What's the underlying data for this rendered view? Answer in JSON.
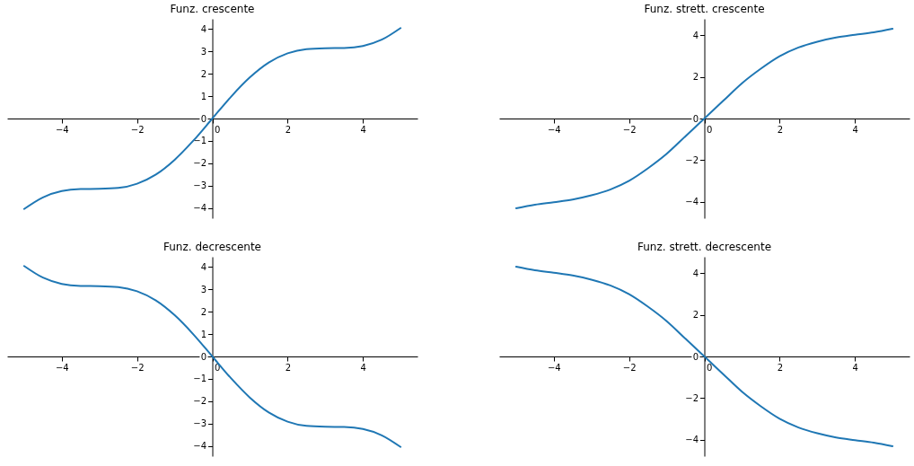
{
  "chart_data": [
    {
      "type": "line",
      "title": "Funz. crescente",
      "x": [
        -5,
        -4.5,
        -4,
        -3.5,
        -3,
        -2.5,
        -2,
        -1.5,
        -1,
        -0.5,
        0,
        0.5,
        1,
        1.5,
        2,
        2.5,
        3,
        3.5,
        4,
        4.5,
        5
      ],
      "xlim": [
        -5.45,
        5.45
      ],
      "xticks": [
        -4,
        -2,
        0,
        2,
        4
      ],
      "ylim": [
        -4.45,
        4.45
      ],
      "yticks": [
        -4,
        -3,
        -2,
        -1,
        0,
        1,
        2,
        3,
        4
      ],
      "series": [
        {
          "color": "#1f77b4",
          "values": [
            -4.04,
            -3.52,
            -3.24,
            -3.15,
            -3.14,
            -3.1,
            -2.91,
            -2.5,
            -1.84,
            -0.98,
            0,
            0.98,
            1.84,
            2.5,
            2.91,
            3.1,
            3.14,
            3.15,
            3.24,
            3.52,
            4.04
          ]
        }
      ]
    },
    {
      "type": "line",
      "title": "Funz. strett. crescente",
      "x": [
        -5,
        -4.5,
        -4,
        -3.5,
        -3,
        -2.5,
        -2,
        -1.5,
        -1,
        -0.5,
        0,
        0.5,
        1,
        1.5,
        2,
        2.5,
        3,
        3.5,
        4,
        4.5,
        5
      ],
      "xlim": [
        -5.45,
        5.45
      ],
      "xticks": [
        -4,
        -2,
        0,
        2,
        4
      ],
      "ylim": [
        -4.8,
        4.8
      ],
      "yticks": [
        -4,
        -2,
        0,
        2,
        4
      ],
      "series": [
        {
          "color": "#1f77b4",
          "values": [
            -4.32,
            -4.15,
            -4.03,
            -3.9,
            -3.7,
            -3.42,
            -3.0,
            -2.4,
            -1.7,
            -0.85,
            0,
            0.85,
            1.7,
            2.4,
            3.0,
            3.42,
            3.7,
            3.9,
            4.03,
            4.15,
            4.32
          ]
        }
      ]
    },
    {
      "type": "line",
      "title": "Funz. decrescente",
      "x": [
        -5,
        -4.5,
        -4,
        -3.5,
        -3,
        -2.5,
        -2,
        -1.5,
        -1,
        -0.5,
        0,
        0.5,
        1,
        1.5,
        2,
        2.5,
        3,
        3.5,
        4,
        4.5,
        5
      ],
      "xlim": [
        -5.45,
        5.45
      ],
      "xticks": [
        -4,
        -2,
        0,
        2,
        4
      ],
      "ylim": [
        -4.45,
        4.45
      ],
      "yticks": [
        -4,
        -3,
        -2,
        -1,
        0,
        1,
        2,
        3,
        4
      ],
      "series": [
        {
          "color": "#1f77b4",
          "values": [
            4.04,
            3.52,
            3.24,
            3.15,
            3.14,
            3.1,
            2.91,
            2.5,
            1.84,
            0.98,
            0,
            -0.98,
            -1.84,
            -2.5,
            -2.91,
            -3.1,
            -3.14,
            -3.15,
            -3.24,
            -3.52,
            -4.04
          ]
        }
      ]
    },
    {
      "type": "line",
      "title": "Funz. strett. decrescente",
      "x": [
        -5,
        -4.5,
        -4,
        -3.5,
        -3,
        -2.5,
        -2,
        -1.5,
        -1,
        -0.5,
        0,
        0.5,
        1,
        1.5,
        2,
        2.5,
        3,
        3.5,
        4,
        4.5,
        5
      ],
      "xlim": [
        -5.45,
        5.45
      ],
      "xticks": [
        -4,
        -2,
        0,
        2,
        4
      ],
      "ylim": [
        -4.8,
        4.8
      ],
      "yticks": [
        -4,
        -2,
        0,
        2,
        4
      ],
      "series": [
        {
          "color": "#1f77b4",
          "values": [
            4.32,
            4.15,
            4.03,
            3.9,
            3.7,
            3.42,
            3.0,
            2.4,
            1.7,
            0.85,
            0,
            -0.85,
            -1.7,
            -2.4,
            -3.0,
            -3.42,
            -3.7,
            -3.9,
            -4.03,
            -4.15,
            -4.32
          ]
        }
      ]
    }
  ]
}
